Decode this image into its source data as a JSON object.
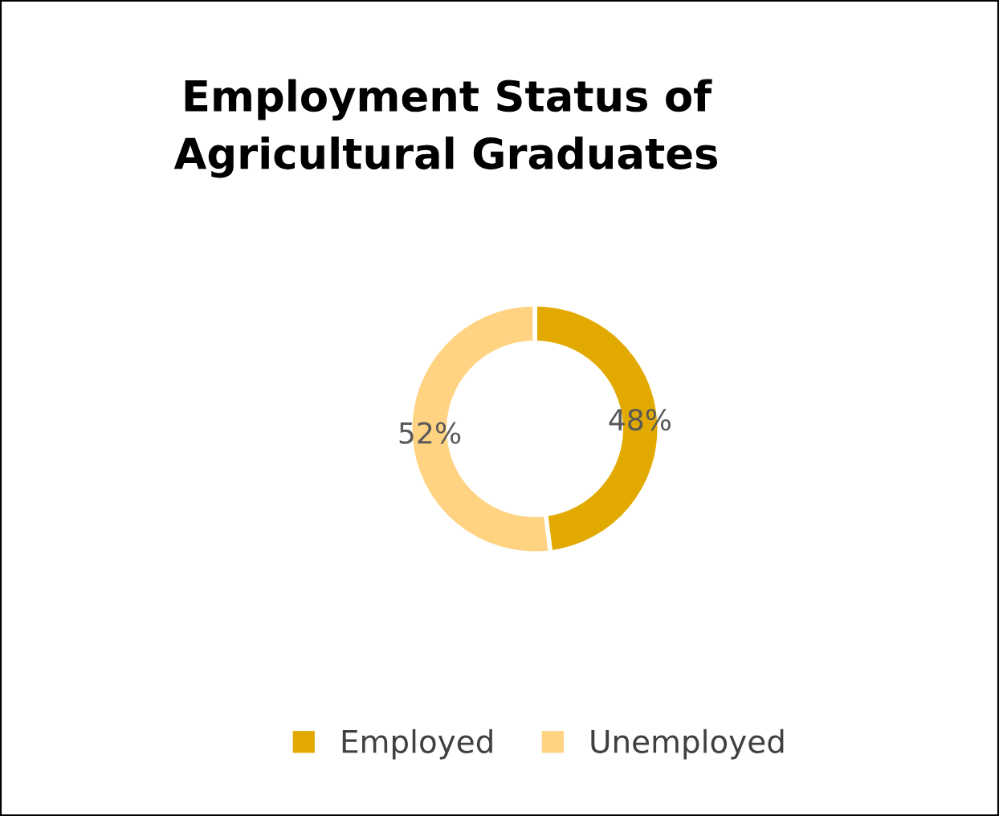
{
  "chart_data": {
    "type": "donut",
    "title": "Employment Status of\nAgricultural Graduates",
    "categories": [
      "Employed",
      "Unemployed"
    ],
    "values": [
      48,
      52
    ],
    "colors": [
      "#e2aa00",
      "#ffd382"
    ],
    "value_labels": [
      "48%",
      "52%"
    ],
    "legend": "bottom"
  }
}
